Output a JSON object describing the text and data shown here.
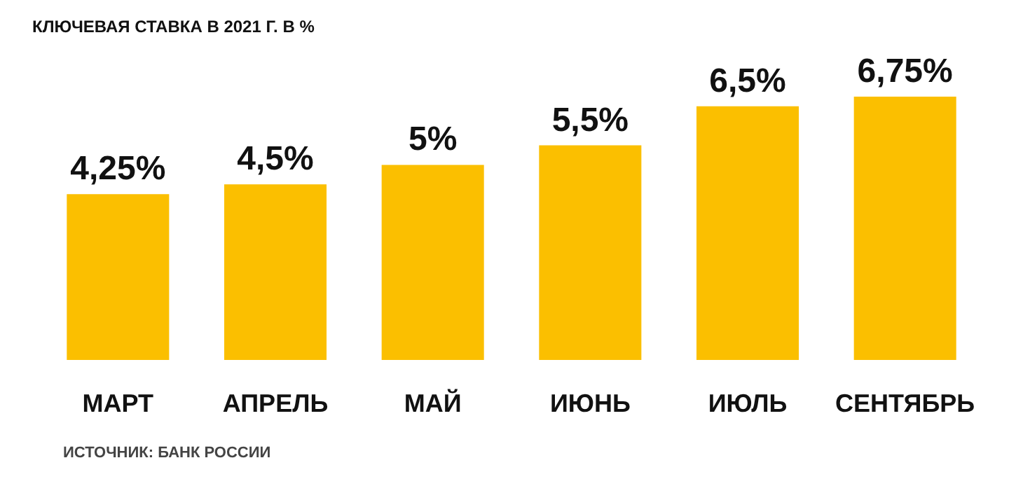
{
  "chart_data": {
    "type": "bar",
    "title": "КЛЮЧЕВАЯ СТАВКА В 2021 Г. В %",
    "categories": [
      "МАРТ",
      "АПРЕЛЬ",
      "МАЙ",
      "ИЮНЬ",
      "ИЮЛЬ",
      "СЕНТЯБРЬ"
    ],
    "values": [
      4.25,
      4.5,
      5,
      5.5,
      6.5,
      6.75
    ],
    "value_labels": [
      "4,25%",
      "4,5%",
      "5%",
      "5,5%",
      "6,5%",
      "6,75%"
    ],
    "color": "#fbbf00",
    "annotations": [
      "ИСТОЧНИК: БАНК РОССИИ"
    ]
  }
}
